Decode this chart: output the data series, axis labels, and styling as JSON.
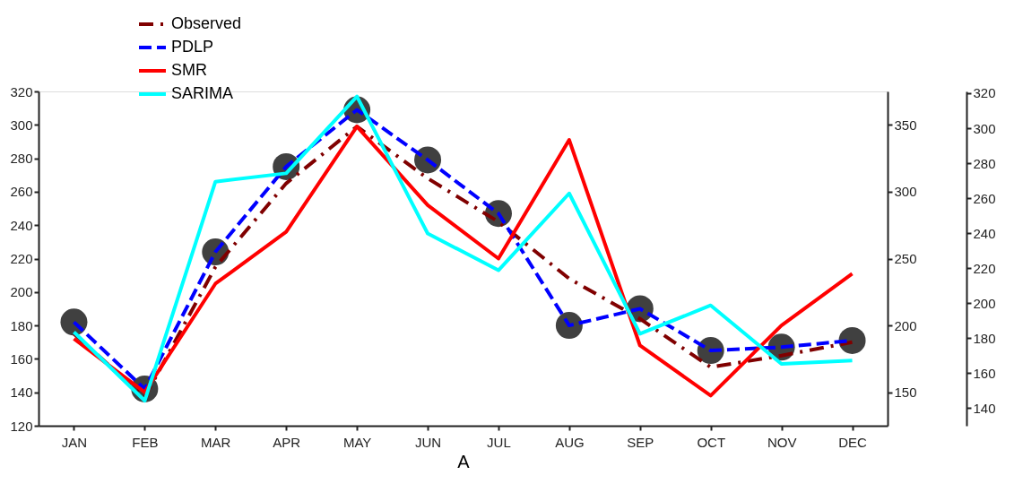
{
  "chart_data": {
    "type": "line",
    "xlabel": "A",
    "categories": [
      "JAN",
      "FEB",
      "MAR",
      "APR",
      "MAY",
      "JUN",
      "JUL",
      "AUG",
      "SEP",
      "OCT",
      "NOV",
      "DEC"
    ],
    "series": [
      {
        "name": "Observed",
        "color": "#800000",
        "line_style": "dashdot",
        "marker": "none",
        "values": [
          175,
          137,
          215,
          265,
          299,
          268,
          242,
          208,
          184,
          155,
          162,
          170
        ]
      },
      {
        "name": "PDLP",
        "color": "#0000ff",
        "line_style": "dashed",
        "marker": "circle",
        "values": [
          182,
          142,
          224,
          275,
          309,
          279,
          247,
          180,
          190,
          165,
          167,
          171
        ]
      },
      {
        "name": "SMR",
        "color": "#ff0000",
        "line_style": "solid",
        "marker": "none",
        "values": [
          172,
          140,
          205,
          236,
          299,
          252,
          220,
          291,
          168,
          138,
          180,
          211
        ]
      },
      {
        "name": "SARIMA",
        "color": "#00ffff",
        "line_style": "solid",
        "marker": "none",
        "values": [
          176,
          135,
          266,
          271,
          317,
          235,
          213,
          259,
          175,
          192,
          157,
          159
        ]
      }
    ],
    "ylim": [
      120,
      320
    ],
    "yticks": [
      120,
      140,
      160,
      180,
      200,
      220,
      240,
      260,
      280,
      300,
      320
    ],
    "y2lim": [
      125,
      375
    ],
    "y2ticks": [
      150,
      200,
      250,
      300,
      350
    ],
    "y3lim": [
      130,
      321
    ],
    "y3ticks": [
      140,
      160,
      180,
      200,
      220,
      240,
      260,
      280,
      300,
      320
    ],
    "grid": false,
    "legend": "top left"
  }
}
